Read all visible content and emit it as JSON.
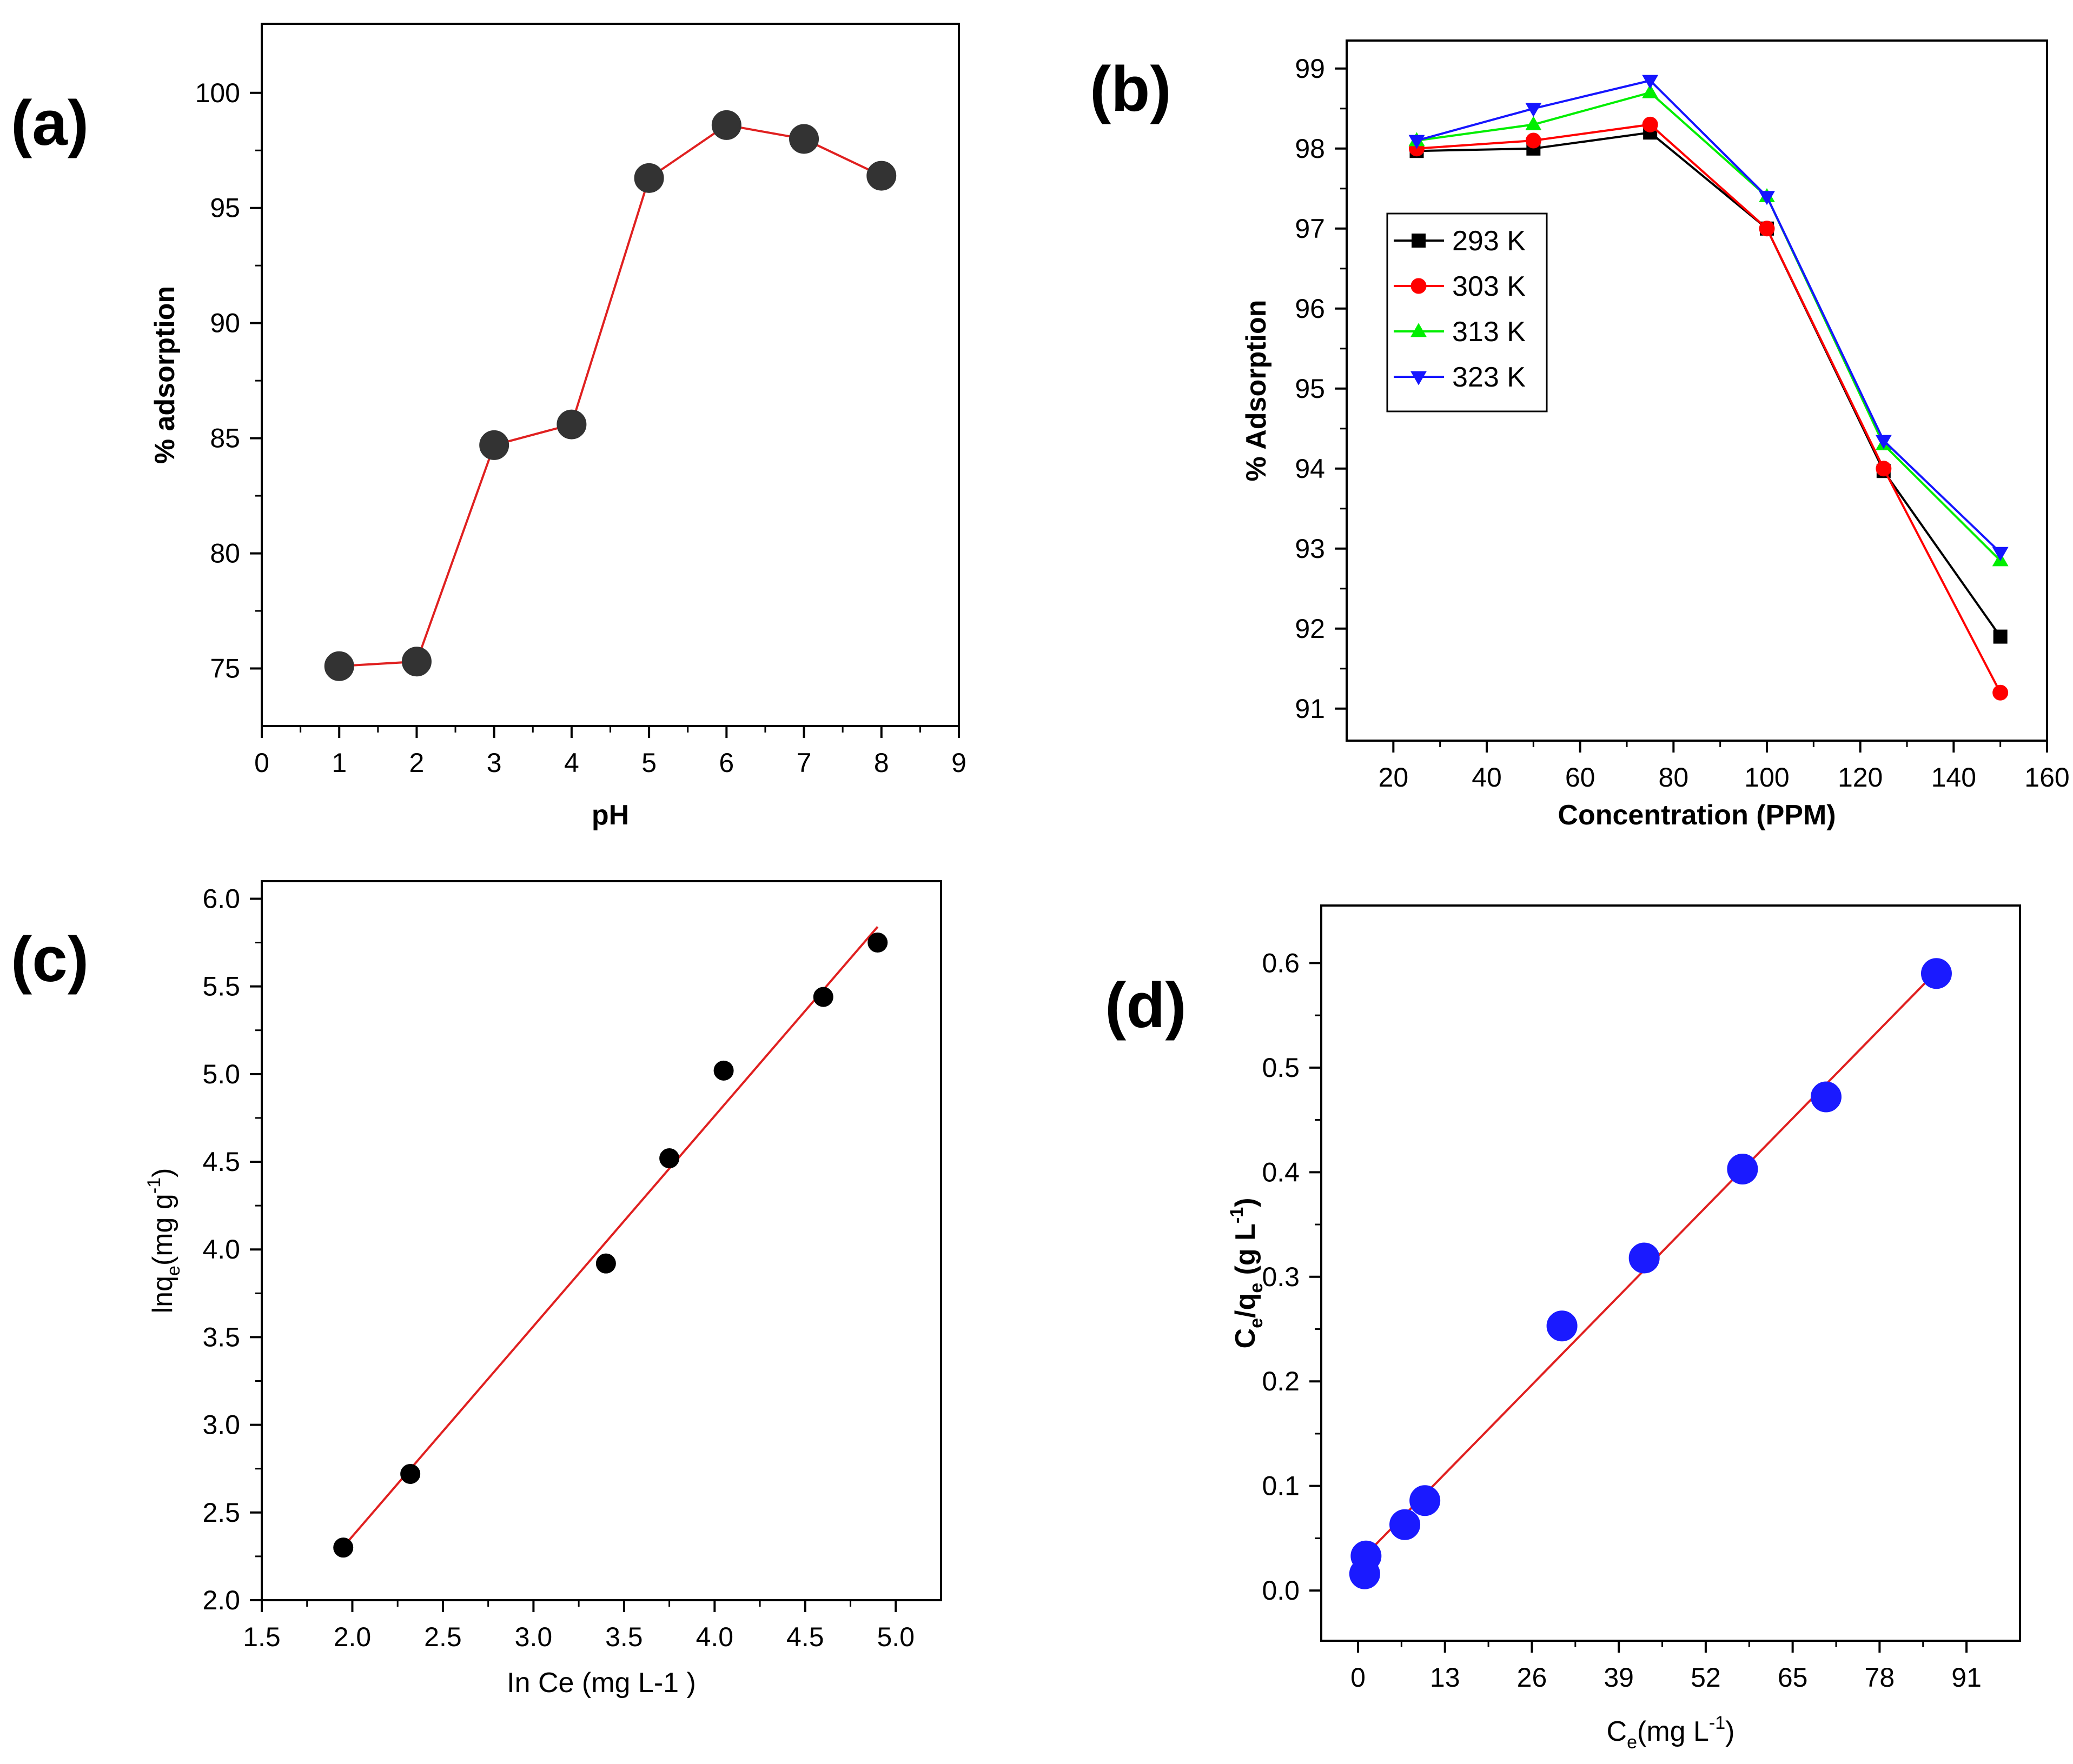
{
  "chart_data": [
    {
      "panel": "(a)",
      "type": "line",
      "xlabel": "pH",
      "ylabel": "% adsorption",
      "xlim": [
        0,
        9
      ],
      "ylim": [
        72.5,
        103
      ],
      "xticks": [
        0,
        1,
        2,
        3,
        4,
        5,
        6,
        7,
        8,
        9
      ],
      "yticks": [
        75,
        80,
        85,
        90,
        95,
        100
      ],
      "series": [
        {
          "color": "#e02020",
          "marker": "circle",
          "marker_color": "#333333",
          "x": [
            1,
            2,
            3,
            4,
            5,
            6,
            7,
            8
          ],
          "y": [
            75.1,
            75.3,
            84.7,
            85.6,
            96.3,
            98.6,
            98.0,
            96.4
          ]
        }
      ]
    },
    {
      "panel": "(b)",
      "type": "line",
      "xlabel": "Concentration (PPM)",
      "ylabel": "% Adsorption",
      "xlim": [
        10,
        160
      ],
      "ylim": [
        90.6,
        99.35
      ],
      "xticks": [
        20,
        40,
        60,
        80,
        100,
        120,
        140,
        160
      ],
      "yticks": [
        91,
        92,
        93,
        94,
        95,
        96,
        97,
        98,
        99
      ],
      "legend": "upper-left",
      "series": [
        {
          "name": "293 K",
          "color": "#000000",
          "marker": "square",
          "x": [
            25,
            50,
            75,
            100,
            125,
            150
          ],
          "y": [
            97.97,
            98.0,
            98.2,
            97.0,
            93.97,
            91.9
          ]
        },
        {
          "name": "303 K",
          "color": "#ff0000",
          "marker": "circle",
          "x": [
            25,
            50,
            75,
            100,
            125,
            150
          ],
          "y": [
            98.0,
            98.1,
            98.3,
            97.0,
            94.0,
            91.2
          ]
        },
        {
          "name": "313 K",
          "color": "#00ee00",
          "marker": "triangle-up",
          "x": [
            25,
            50,
            75,
            100,
            125,
            150
          ],
          "y": [
            98.1,
            98.3,
            98.7,
            97.4,
            94.3,
            92.85
          ]
        },
        {
          "name": "323 K",
          "color": "#1515ff",
          "marker": "triangle-down",
          "x": [
            25,
            50,
            75,
            100,
            125,
            150
          ],
          "y": [
            98.1,
            98.5,
            98.85,
            97.4,
            94.35,
            92.95
          ]
        }
      ]
    },
    {
      "panel": "(c)",
      "type": "scatter",
      "xlabel": "In Ce (mg L-1 )",
      "ylabel": "lnq",
      "ylabel_sub": "e",
      "ylabel_after": "(mg g",
      "ylabel_sup": "-1",
      "ylabel_end": ")",
      "xlim": [
        1.5,
        5.25
      ],
      "ylim": [
        2.0,
        6.1
      ],
      "xticks": [
        "1.5",
        "2.0",
        "2.5",
        "3.0",
        "3.5",
        "4.0",
        "4.5",
        "5.0"
      ],
      "yticks": [
        "2.0",
        "2.5",
        "3.0",
        "3.5",
        "4.0",
        "4.5",
        "5.0",
        "5.5",
        "6.0"
      ],
      "series": [
        {
          "marker": "circle",
          "marker_color": "#000000",
          "x": [
            1.95,
            2.32,
            3.4,
            3.75,
            4.05,
            4.6,
            4.9
          ],
          "y": [
            2.3,
            2.72,
            3.92,
            4.52,
            5.02,
            5.44,
            5.75
          ]
        }
      ],
      "fit_line": {
        "color": "#e02020",
        "x": [
          1.93,
          4.9
        ],
        "y": [
          2.28,
          5.84
        ]
      }
    },
    {
      "panel": "(d)",
      "type": "scatter",
      "xlabel": "C",
      "xlabel_sub": "e",
      "xlabel_after": "(mg L",
      "xlabel_sup": "-1",
      "xlabel_end": ")",
      "ylabel": "C",
      "ylabel_sub": "e",
      "ylabel_mid": "/q",
      "ylabel_sub2": "e",
      "ylabel_after": " (g L",
      "ylabel_sup": "-1",
      "ylabel_end": ")",
      "xlim": [
        -5.5,
        99
      ],
      "ylim": [
        -0.048,
        0.655
      ],
      "xticks": [
        0,
        13,
        26,
        39,
        52,
        65,
        78,
        91
      ],
      "yticks": [
        "0.0",
        "0.1",
        "0.2",
        "0.3",
        "0.4",
        "0.5",
        "0.6"
      ],
      "series": [
        {
          "marker": "circle",
          "marker_color": "#1a1aff",
          "x": [
            1.0,
            1.2,
            7.0,
            10.0,
            30.5,
            42.8,
            57.5,
            70.0,
            86.5
          ],
          "y": [
            0.016,
            0.033,
            0.063,
            0.086,
            0.253,
            0.318,
            0.403,
            0.472,
            0.59
          ]
        }
      ],
      "fit_line": {
        "color": "#e02020",
        "x": [
          0.5,
          86.5
        ],
        "y": [
          0.03,
          0.592
        ]
      }
    }
  ],
  "panel_labels": [
    "(a)",
    "(b)",
    "(c)",
    "(d)"
  ]
}
